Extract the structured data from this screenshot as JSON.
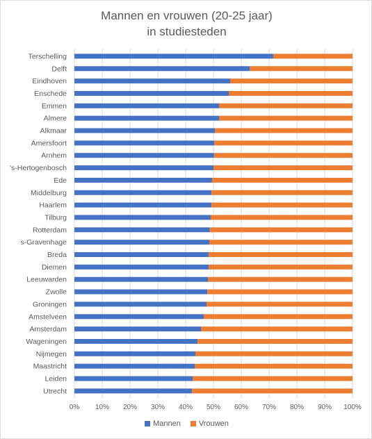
{
  "chart_data": {
    "type": "bar",
    "orientation": "horizontal",
    "stacked": "percent",
    "title": [
      "Mannen en vrouwen (20-25 jaar)",
      "in studiesteden"
    ],
    "categories": [
      "Terschelling",
      "Delft",
      "Eindhoven",
      "Enschede",
      "Emmen",
      "Almere",
      "Alkmaar",
      "Amersfoort",
      "Arnhem",
      "'s-Hertogenbosch",
      "Ede",
      "Middelburg",
      "Haarlem",
      "Tilburg",
      "Rotterdam",
      "s-Gravenhage",
      "Breda",
      "Diemen",
      "Leeuwarden",
      "Zwolle",
      "Groningen",
      "Amstelveen",
      "Amsterdam",
      "Wageningen",
      "Nijmegen",
      "Maastricht",
      "Leiden",
      "Utrecht"
    ],
    "series": [
      {
        "name": "Mannen",
        "color": "#4472c4",
        "values": [
          71.5,
          63,
          56,
          55.5,
          52,
          52,
          50.5,
          50.3,
          50.2,
          50,
          49.5,
          49.3,
          49.3,
          49,
          48.7,
          48.5,
          48.3,
          48.3,
          48,
          47.8,
          47.5,
          46.5,
          45.5,
          44.3,
          43.5,
          43.3,
          42.5,
          42.3
        ]
      },
      {
        "name": "Vrouwen",
        "color": "#ed7d31",
        "values": [
          28.5,
          37,
          44,
          44.5,
          48,
          48,
          49.5,
          49.7,
          49.8,
          50,
          50.5,
          50.7,
          50.7,
          51,
          51.3,
          51.5,
          51.7,
          51.7,
          52,
          52.2,
          52.5,
          53.5,
          54.5,
          55.7,
          56.5,
          56.7,
          57.5,
          57.7
        ]
      }
    ],
    "xlim": [
      0,
      100
    ],
    "xticks": [
      "0%",
      "10%",
      "20%",
      "30%",
      "40%",
      "50%",
      "60%",
      "70%",
      "80%",
      "90%",
      "100%"
    ],
    "grid": true,
    "legend_position": "bottom"
  }
}
